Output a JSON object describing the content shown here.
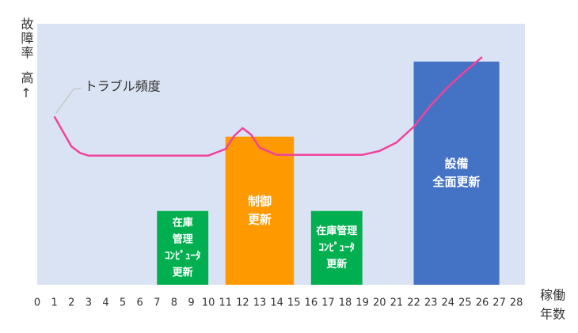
{
  "chart_data": {
    "type": "bar",
    "y_label": "故障率",
    "y_label_sub": "高↑",
    "x_label": [
      "稼働",
      "年数"
    ],
    "xlim": [
      0,
      28.5
    ],
    "ylim": [
      0,
      4
    ],
    "xticks": [
      0,
      1,
      2,
      3,
      4,
      5,
      6,
      7,
      8,
      9,
      10,
      11,
      12,
      13,
      14,
      15,
      16,
      17,
      18,
      19,
      20,
      21,
      22,
      23,
      24,
      25,
      26,
      27,
      28
    ],
    "background": "#dae3f3",
    "bars": [
      {
        "x_start": 7,
        "x_end": 10,
        "value": 1.13,
        "color": "#00b050",
        "label": [
          "在庫",
          "管理",
          "ｺﾝﾋﾟｭｰﾀ",
          "更新"
        ]
      },
      {
        "x_start": 11,
        "x_end": 15,
        "value": 2.27,
        "color": "#ff9900",
        "label": [
          "制御",
          "更新"
        ]
      },
      {
        "x_start": 16,
        "x_end": 19,
        "value": 1.13,
        "color": "#00b050",
        "label": [
          "在庫管理",
          "ｺﾝﾋﾟｭｰﾀ",
          "更新"
        ]
      },
      {
        "x_start": 22,
        "x_end": 27,
        "value": 3.42,
        "color": "#4472c4",
        "label": [
          "設備",
          "全面更新"
        ]
      }
    ],
    "line": {
      "name": "トラブル頻度",
      "color": "#f0439c",
      "x": [
        1,
        1.5,
        2,
        2.5,
        3,
        5,
        8,
        10,
        11,
        11.5,
        12,
        12.5,
        13,
        14,
        17,
        19,
        20,
        21,
        22,
        23,
        24,
        25,
        26
      ],
      "values": [
        2.58,
        2.35,
        2.12,
        2.02,
        1.98,
        1.98,
        1.98,
        1.98,
        2.08,
        2.28,
        2.4,
        2.3,
        2.1,
        1.99,
        1.99,
        1.99,
        2.05,
        2.18,
        2.42,
        2.75,
        3.03,
        3.27,
        3.49
      ]
    }
  }
}
